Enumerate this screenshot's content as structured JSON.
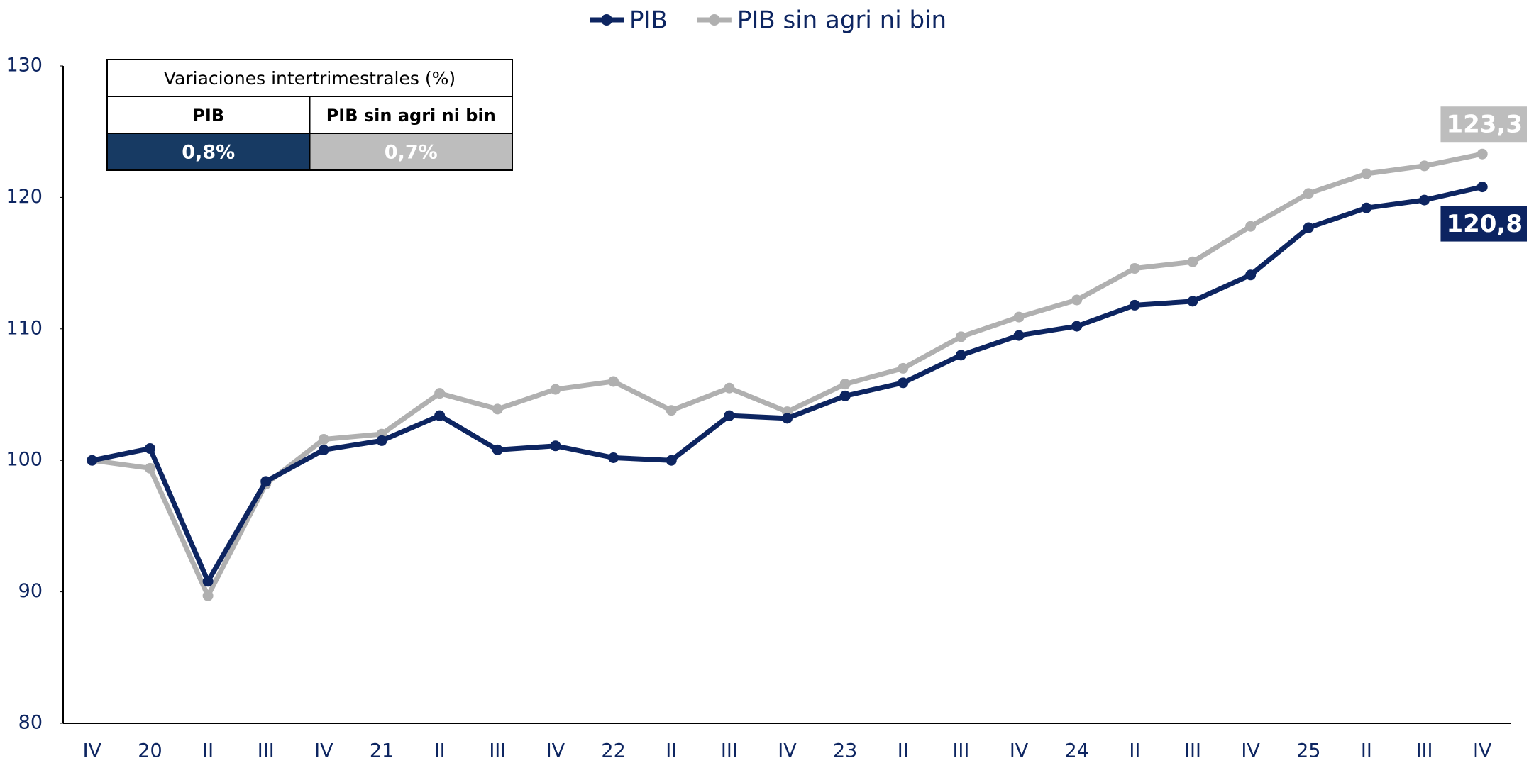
{
  "chart_data": {
    "type": "line",
    "categories": [
      "IV",
      "20",
      "II",
      "III",
      "IV",
      "21",
      "II",
      "III",
      "IV",
      "22",
      "II",
      "III",
      "IV",
      "23",
      "II",
      "III",
      "IV",
      "24",
      "II",
      "III",
      "IV",
      "25",
      "II",
      "III",
      "IV"
    ],
    "series": [
      {
        "name": "PIB",
        "color": "#0d2561",
        "values": [
          100,
          100.9,
          90.8,
          98.4,
          100.8,
          101.5,
          103.4,
          100.8,
          101.1,
          100.2,
          100.0,
          103.4,
          103.2,
          104.9,
          105.9,
          108.0,
          109.5,
          110.2,
          111.8,
          112.1,
          114.1,
          117.7,
          119.2,
          119.8,
          120.8
        ],
        "value_labels": [
          null,
          null,
          null,
          null,
          null,
          null,
          null,
          null,
          null,
          null,
          null,
          null,
          null,
          null,
          null,
          null,
          null,
          null,
          null,
          null,
          null,
          null,
          null,
          null,
          "120,8"
        ]
      },
      {
        "name": "PIB sin agri ni bin",
        "color": "#b0b0b0",
        "values": [
          100,
          99.4,
          89.7,
          98.2,
          101.6,
          102.0,
          105.1,
          103.9,
          105.4,
          106.0,
          103.8,
          105.5,
          103.7,
          105.8,
          107.0,
          109.4,
          110.9,
          112.2,
          114.6,
          115.1,
          117.8,
          120.3,
          121.8,
          122.4,
          123.3
        ],
        "value_labels": [
          null,
          null,
          null,
          null,
          null,
          null,
          null,
          null,
          null,
          null,
          null,
          null,
          null,
          null,
          null,
          null,
          null,
          null,
          null,
          null,
          null,
          null,
          null,
          null,
          "123,3"
        ]
      }
    ],
    "ylim": [
      80,
      130
    ],
    "yticks": [
      80,
      90,
      100,
      110,
      120,
      130
    ],
    "table": {
      "title": "Variaciones intertrimestrales (%)",
      "columns": [
        "PIB",
        "PIB sin agri ni bin"
      ],
      "cells": [
        "0,8%",
        "0,7%"
      ],
      "cell_colors": [
        "#173a63",
        "#bdbdbd"
      ]
    }
  }
}
